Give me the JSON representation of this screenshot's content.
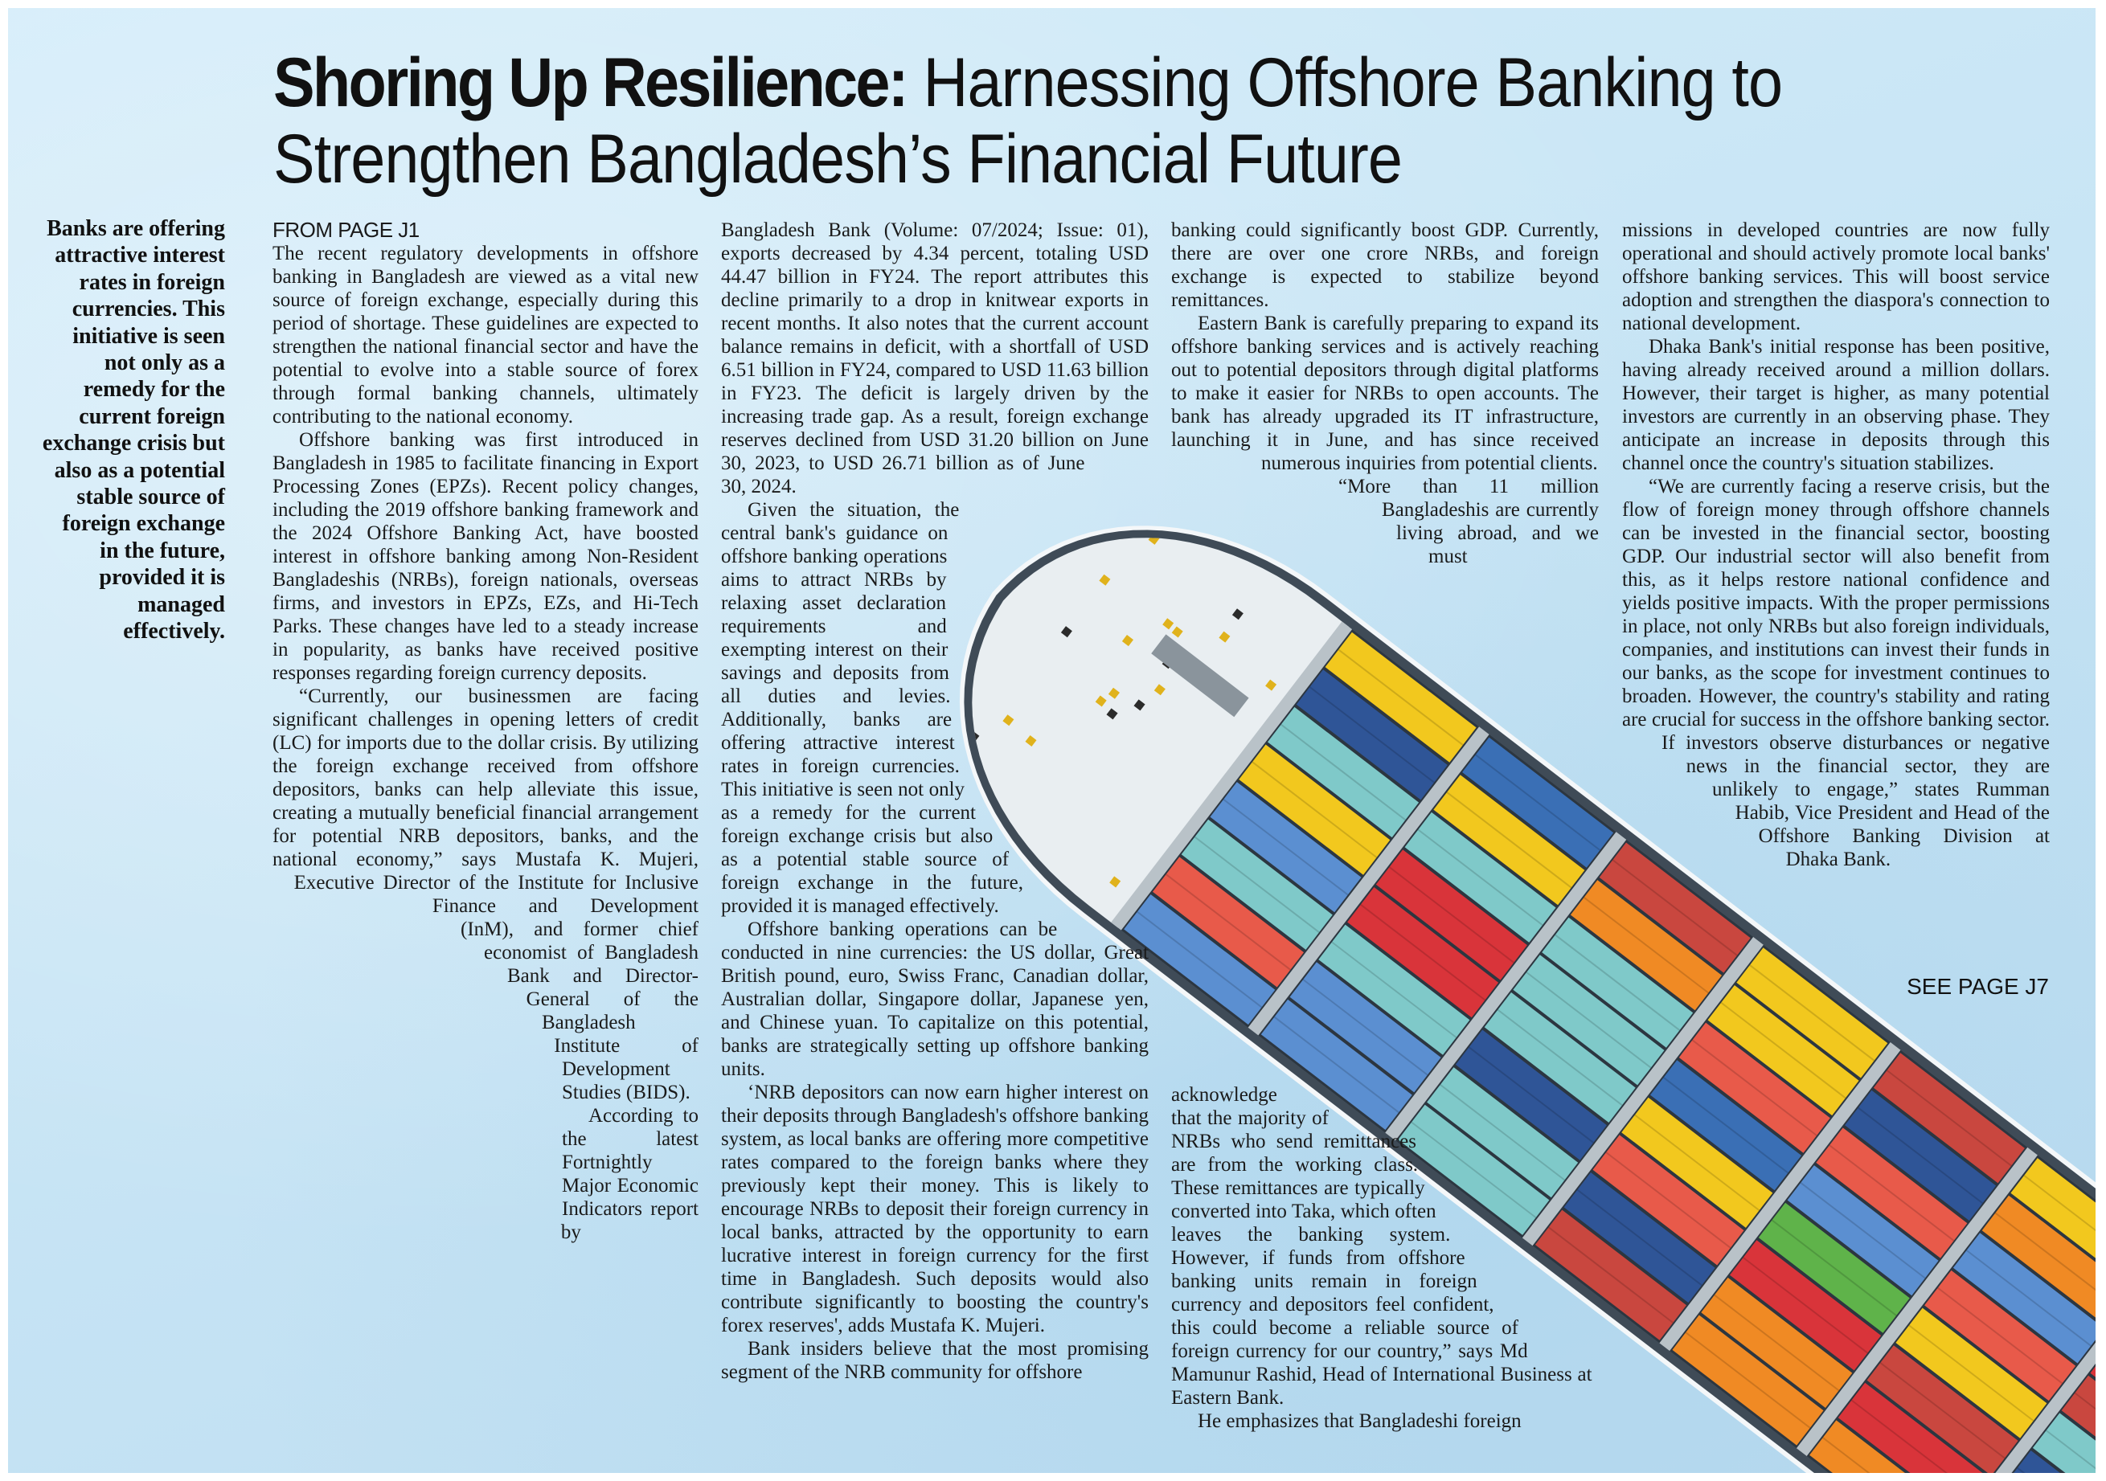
{
  "headline": {
    "bold": "Shoring Up Resilience:",
    "line1_rest": " Harnessing Offshore Banking to",
    "line2": "Strengthen Bangladesh’s Financial Future"
  },
  "pull_quote": "Banks are offering attractive interest rates in foreign currencies. This initiative is seen not only as a remedy for the current foreign exchange crisis but also as a potential stable source of foreign exchange in the future, provided it is managed effectively.",
  "from_page": "FROM PAGE J1",
  "see_page": "SEE PAGE J7",
  "columns": {
    "col1": [
      "The recent regulatory developments in offshore banking in Bangladesh are viewed as a vital new source of foreign exchange, especially during this period of shortage. These guidelines are expected to strengthen the national financial sector and have the potential to evolve into a stable source of forex through formal banking channels, ultimately contributing to the national economy.",
      "Offshore banking was first introduced in Bangladesh in 1985 to facilitate financing in Export Processing Zones (EPZs). Recent policy changes, including the 2019 offshore banking framework and the 2024 Offshore Banking Act, have boosted interest in offshore banking among Non-Resident Bangladeshis (NRBs), foreign nationals, overseas firms, and investors in EPZs, EZs, and Hi-Tech Parks. These changes have led to a steady increase in popularity, as banks have received positive responses regarding foreign currency deposits.",
      "“Currently, our businessmen are facing significant challenges in opening letters of credit (LC) for imports due to the dollar crisis. By utilizing the foreign exchange received from offshore depositors, banks can help alleviate this issue, creating a mutually beneficial financial arrangement for potential NRB depositors, banks, and the national economy,” says Mustafa K. Mujeri, Executive Director of the Institute for Inclusive Finance and Development (InM), and former chief economist of Bangladesh Bank and Director-General of the Bangladesh Institute of Development Studies (BIDS).",
      "According to the latest Fortnightly Major Economic Indicators report by"
    ],
    "col2": [
      "Bangladesh Bank (Volume: 07/2024; Issue: 01), exports decreased by 4.34 percent, totaling USD 44.47 billion in FY24. The report attributes this decline primarily to a drop in knitwear exports in recent months. It also notes that the current account balance remains in deficit, with a shortfall of USD 6.51 billion in FY24, compared to USD 11.63 billion in FY23. The deficit is largely driven by the increasing trade gap. As a result, foreign exchange reserves declined from USD 31.20 billion on June 30, 2023, to USD 26.71 billion as of June 30, 2024.",
      "Given the situation, the central bank's guidance on offshore banking operations aims to attract NRBs by relaxing asset declaration requirements and exempting interest on their savings and deposits from all duties and levies. Additionally, banks are offering attractive interest rates in foreign currencies. This initiative is seen not only as a remedy for the current foreign exchange crisis but also as a potential stable source of foreign exchange in the future, provided it is managed effectively.",
      "Offshore banking operations can be conducted in nine currencies: the US dollar, Great British pound, euro, Swiss Franc, Canadian dollar, Australian dollar, Singapore dollar, Japanese yen, and Chinese yuan. To capitalize on this potential, banks are strategically setting up offshore banking units.",
      "‘NRB depositors can now earn higher interest on their deposits through Bangladesh's offshore banking system, as local banks are offering more competitive rates compared to the foreign banks where they previously kept their money. This is likely to encourage NRBs to deposit their foreign currency in local banks, attracted by the opportunity to earn lucrative interest in foreign currency for the first time in Bangladesh. Such deposits would also contribute significantly to boosting the country's forex reserves', adds Mustafa K. Mujeri.",
      "Bank insiders believe that the most promising segment of the NRB community for offshore"
    ],
    "col3_top": [
      "banking could significantly boost GDP. Currently, there are over one crore NRBs, and foreign exchange is expected to stabilize beyond remittances.",
      "Eastern Bank is carefully preparing to expand its offshore banking services and is actively reaching out to potential depositors through digital platforms to make it easier for NRBs to open accounts. The bank has already upgraded its IT infrastructure, launching it in June, and has since received numerous inquiries from potential clients.",
      "“More than 11 million Bangladeshis are currently living abroad, and we must"
    ],
    "col3_bottom": [
      "acknowledge that the majority of NRBs who send remittances are from the working class. These remittances are typically converted into Taka, which often leaves the banking system. However, if funds from offshore banking units remain in foreign currency and depositors feel confident, this could become a reliable source of foreign currency for our country,” says Md Mamunur Rashid, Head of International Business at Eastern Bank.",
      "He emphasizes that Bangladeshi foreign"
    ],
    "col4": [
      "missions in developed countries are now fully operational and should actively promote local banks' offshore banking services. This will boost service adoption and strengthen the diaspora's connection to national development.",
      "Dhaka Bank's initial response has been positive, having already received around a million dollars. However, their target is higher, as many potential investors are currently in an observing phase. They anticipate an increase in deposits through this channel once the country's situation stabilizes.",
      "“We are currently facing a reserve crisis, but the flow of foreign money through offshore channels can be invested in the financial sector, boosting GDP. Our industrial sector will also benefit from this, as it helps restore national confidence and yields positive impacts. With the proper permissions in place, not only NRBs but also foreign individuals, companies, and institutions can invest their funds in our banks, as the scope for investment continues to broaden. However, the country's stability and rating are crucial for success in the offshore banking sector. If investors observe disturbances or negative news in the financial sector, they are unlikely to engage,” states Rumman Habib, Vice President and Head of the Offshore Banking Division at Dhaka Bank."
    ]
  },
  "colors": {
    "sea": "#c8e5f5",
    "text": "#1a1a1a",
    "ship_palette": [
      "#d9343a",
      "#3a6fb5",
      "#f2c81e",
      "#f08a24",
      "#7fc9c9",
      "#5fb34a",
      "#5b8fd1",
      "#e85a4a",
      "#2f5597",
      "#c9473f"
    ]
  }
}
